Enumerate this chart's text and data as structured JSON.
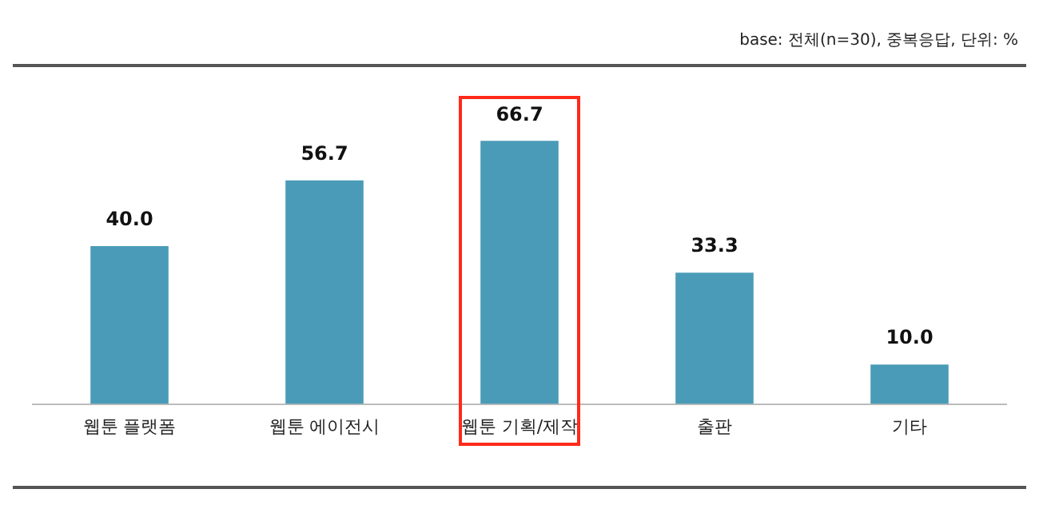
{
  "chart_data": {
    "type": "bar",
    "categories": [
      "웹툰 플랫폼",
      "웹툰 에이전시",
      "웹툰 기획/제작",
      "출판",
      "기타"
    ],
    "values": [
      40.0,
      56.7,
      66.7,
      33.3,
      10.0
    ],
    "color": "#4a9bb7",
    "value_labels": [
      "40.0",
      "56.7",
      "66.7",
      "33.3",
      "10.0"
    ],
    "grid": false,
    "legend": false,
    "annotations": [
      "base: 전체(n=30), 중복응답, 단위: %"
    ]
  }
}
